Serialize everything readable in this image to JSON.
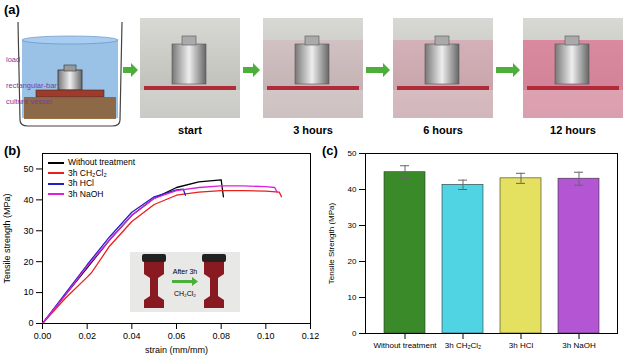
{
  "panel_a": {
    "label": "(a)",
    "schematic_labels": [
      "load",
      "rectangular-bar",
      "culture vessel"
    ],
    "photos": [
      "start",
      "3 hours",
      "6 hours",
      "12 hours"
    ]
  },
  "chart_data": [
    {
      "panel_label": "(b)",
      "type": "line",
      "x_label": "strain (mm/mm)",
      "y_label": "Tensile strength (MPa)",
      "xlim": [
        0,
        0.12
      ],
      "xticks": [
        {
          "value": 0,
          "label": "0.00"
        },
        {
          "value": 0.02,
          "label": "0.02"
        },
        {
          "value": 0.04,
          "label": "0.04"
        },
        {
          "value": 0.06,
          "label": "0.06"
        },
        {
          "value": 0.08,
          "label": "0.08"
        },
        {
          "value": 0.1,
          "label": "0.10"
        },
        {
          "value": 0.12,
          "label": "0.12"
        }
      ],
      "ylim": [
        0,
        55
      ],
      "yticks": [
        0,
        10,
        20,
        30,
        40,
        50
      ],
      "legend": "top-left",
      "inset_text": [
        "After 3h",
        "CH₂Cl₂"
      ],
      "series": [
        {
          "name": "Without treatment",
          "color": "#000000",
          "x": [
            0,
            0.01,
            0.02,
            0.03,
            0.04,
            0.05,
            0.06,
            0.07,
            0.08,
            0.081
          ],
          "values": [
            0,
            9,
            18,
            27,
            35,
            40.5,
            44,
            45.8,
            46.5,
            41
          ]
        },
        {
          "name": "3h CH₂Cl₂",
          "color": "#e8201c",
          "x": [
            0,
            0.01,
            0.02,
            0.022,
            0.03,
            0.04,
            0.05,
            0.06,
            0.07,
            0.08,
            0.09,
            0.1,
            0.106,
            0.107
          ],
          "values": [
            0,
            8,
            15,
            16.5,
            25,
            33,
            38.5,
            41.5,
            42.5,
            43,
            43,
            42.8,
            42.5,
            41
          ]
        },
        {
          "name": "3h HCl",
          "color": "#2020c8",
          "x": [
            0,
            0.01,
            0.02,
            0.03,
            0.04,
            0.05,
            0.06,
            0.063,
            0.064
          ],
          "values": [
            0,
            9.5,
            19,
            28,
            36,
            41,
            43.2,
            43.5,
            41.5
          ]
        },
        {
          "name": "3h NaOH",
          "color": "#e020e0",
          "x": [
            0,
            0.01,
            0.02,
            0.03,
            0.04,
            0.05,
            0.06,
            0.07,
            0.08,
            0.09,
            0.1,
            0.104,
            0.105
          ],
          "values": [
            0,
            9,
            18.5,
            27,
            35,
            40.5,
            43,
            44,
            44.5,
            44.5,
            44.3,
            44,
            42.5
          ]
        }
      ]
    },
    {
      "panel_label": "(c)",
      "type": "bar",
      "y_label": "Tensile Strength (MPa)",
      "categories": [
        "Without treatment",
        "3h CH₂Cl₂",
        "3h HCl",
        "3h NaOH"
      ],
      "values": [
        44.8,
        41.3,
        43.1,
        43.0
      ],
      "errors": [
        1.8,
        1.3,
        1.4,
        1.8
      ],
      "colors": [
        "#3a8a2a",
        "#50d4e4",
        "#e4e060",
        "#b455d4"
      ],
      "ylim": [
        0,
        50
      ],
      "yticks": [
        0,
        10,
        20,
        30,
        40,
        50
      ]
    }
  ]
}
